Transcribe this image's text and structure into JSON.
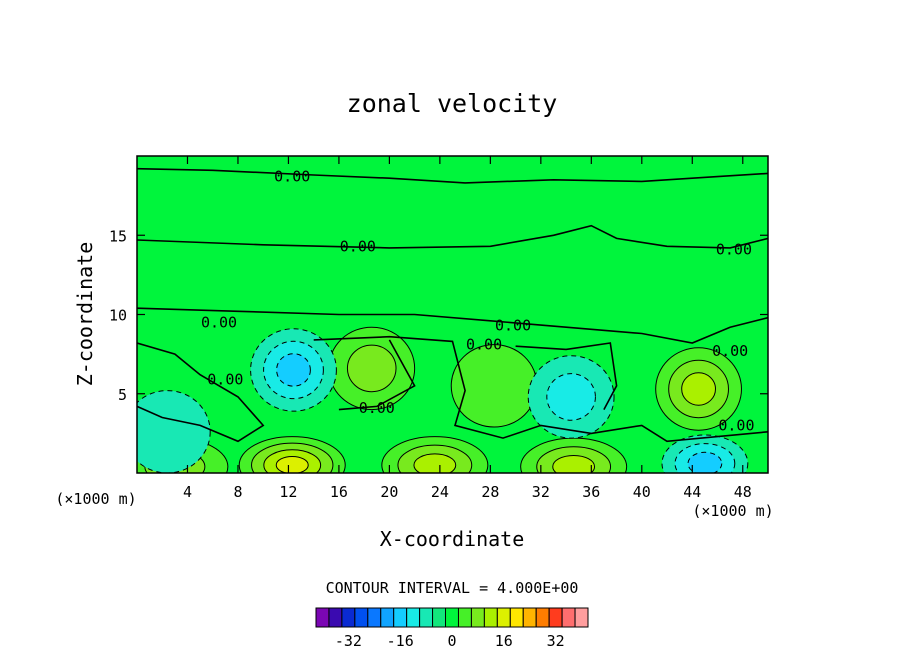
{
  "chart_data": {
    "type": "contour",
    "title": "zonal velocity",
    "xlabel": "X-coordinate",
    "ylabel": "Z-coordinate",
    "x_unit_left": "(×1000 m)",
    "x_unit_right": "(×1000 m)",
    "xlim": [
      0,
      50
    ],
    "ylim": [
      0,
      20
    ],
    "xticks": [
      4,
      8,
      12,
      16,
      20,
      24,
      28,
      32,
      36,
      40,
      44,
      48
    ],
    "yticks": [
      5,
      10,
      15
    ],
    "contour_interval_text": "CONTOUR INTERVAL = 4.000E+00",
    "contour_labels": [
      "0.00",
      "0.00",
      "0.00",
      "0.00",
      "0.00",
      "0.00",
      "0.00",
      "0.00",
      "0.00",
      "0.00"
    ],
    "features": [
      {
        "kind": "max",
        "x": 18.6,
        "z": 6.6,
        "level": 8
      },
      {
        "kind": "max",
        "x": 28.3,
        "z": 5.5,
        "level": 4
      },
      {
        "kind": "max",
        "x": 44.5,
        "z": 5.3,
        "level": 12
      },
      {
        "kind": "max",
        "x": 12.3,
        "z": 0.5,
        "level": 16
      },
      {
        "kind": "max",
        "x": 23.6,
        "z": 0.5,
        "level": 12
      },
      {
        "kind": "max",
        "x": 34.6,
        "z": 0.4,
        "level": 12
      },
      {
        "kind": "max",
        "x": 3.0,
        "z": 0.4,
        "level": 8
      },
      {
        "kind": "min",
        "x": 12.4,
        "z": 6.5,
        "level": -12
      },
      {
        "kind": "min",
        "x": 34.4,
        "z": 4.8,
        "level": -8
      },
      {
        "kind": "min",
        "x": 45.0,
        "z": 0.6,
        "level": -12
      },
      {
        "kind": "min",
        "x": 2.4,
        "z": 2.6,
        "level": -4
      }
    ],
    "colorbar": {
      "tick_labels": [
        "-32",
        "-16",
        "0",
        "16",
        "32"
      ],
      "tick_values": [
        -32,
        -16,
        0,
        16,
        32
      ],
      "levels": [
        -40,
        -36,
        -32,
        -28,
        -24,
        -20,
        -16,
        -12,
        -8,
        -4,
        0,
        4,
        8,
        12,
        16,
        20,
        24,
        28,
        32,
        36,
        40
      ],
      "colors": [
        "#7b06b4",
        "#3a0ab0",
        "#0a2ad2",
        "#0050f0",
        "#0a78ff",
        "#10a4ff",
        "#14cdff",
        "#18ebe6",
        "#18e8b4",
        "#12e77c",
        "#00f53c",
        "#46f028",
        "#78ea1e",
        "#aaf000",
        "#dcf000",
        "#ffe600",
        "#ffb400",
        "#ff7d00",
        "#ff3c1e",
        "#ff6e6e",
        "#ff9e9e"
      ]
    }
  }
}
